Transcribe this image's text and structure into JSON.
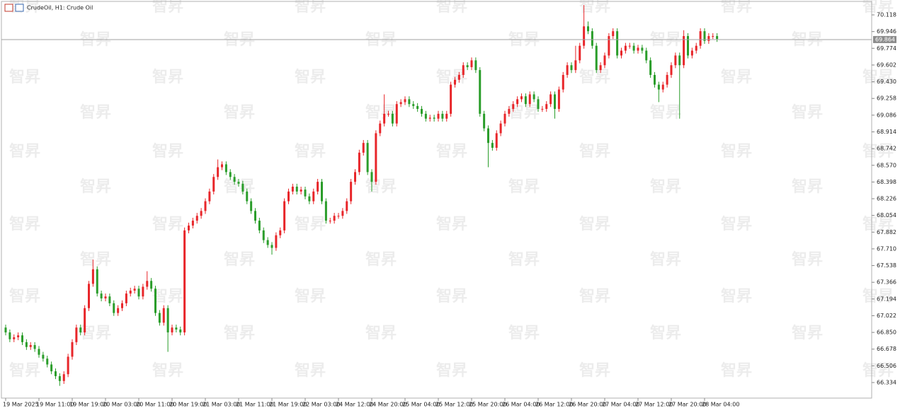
{
  "chart_data": {
    "type": "candlestick",
    "title": "CrudeOil, H1:  Crude Oil",
    "watermark": "智昇",
    "up_color": "#e8262a",
    "down_color": "#2a9d2a",
    "current_price": 69.864,
    "ylim": [
      66.174,
      70.242
    ],
    "yticks": [
      70.118,
      69.946,
      69.774,
      69.602,
      {
        "value": 69.43,
        "label": "69.430"
      },
      69.258,
      69.086,
      68.914,
      68.742,
      {
        "value": 68.57,
        "label": "68.570"
      },
      68.398,
      68.226,
      68.054,
      67.882,
      {
        "value": 67.71,
        "label": "67.710"
      },
      67.538,
      67.366,
      67.194,
      67.022,
      {
        "value": 66.85,
        "label": "66.850"
      },
      66.678,
      66.506,
      66.334
    ],
    "categories": [
      "19 Mar 2025",
      null,
      null,
      null,
      null,
      null,
      null,
      null,
      "19 Mar 11:00",
      null,
      null,
      null,
      null,
      null,
      null,
      null,
      "19 Mar 19:00",
      null,
      null,
      null,
      null,
      null,
      null,
      null,
      "20 Mar 03:00",
      null,
      null,
      null,
      null,
      null,
      null,
      null,
      "20 Mar 11:00",
      null,
      null,
      null,
      null,
      null,
      null,
      null,
      "20 Mar 19:00",
      null,
      null,
      null,
      null,
      null,
      null,
      null,
      "21 Mar 03:00",
      null,
      null,
      null,
      null,
      null,
      null,
      null,
      "21 Mar 11:00",
      null,
      null,
      null,
      null,
      null,
      null,
      null,
      "21 Mar 19:00",
      null,
      null,
      null,
      null,
      null,
      null,
      null,
      "22 Mar 03:00",
      null,
      null,
      null,
      null,
      null,
      null,
      null,
      "24 Mar 12:00",
      null,
      null,
      null,
      null,
      null,
      null,
      null,
      "24 Mar 20:00",
      null,
      null,
      null,
      null,
      null,
      null,
      null,
      "25 Mar 04:00",
      null,
      null,
      null,
      null,
      null,
      null,
      null,
      "25 Mar 12:00",
      null,
      null,
      null,
      null,
      null,
      null,
      null,
      "25 Mar 20:00",
      null,
      null,
      null,
      null,
      null,
      null,
      null,
      "26 Mar 04:00",
      null,
      null,
      null,
      null,
      null,
      null,
      null,
      "26 Mar 12:00",
      null,
      null,
      null,
      null,
      null,
      null,
      null,
      "26 Mar 20:00",
      null,
      null,
      null,
      null,
      null,
      null,
      null,
      "27 Mar 04:00",
      null,
      null,
      null,
      null,
      null,
      null,
      null,
      "27 Mar 12:00",
      null,
      null,
      null,
      null,
      null,
      null,
      null,
      "27 Mar 20:00",
      null,
      null,
      null,
      null,
      null,
      null,
      null,
      "28 Mar 04:00",
      null,
      null,
      null
    ],
    "open": [
      66.9,
      66.85,
      66.78,
      66.8,
      66.82,
      66.75,
      66.7,
      66.72,
      66.68,
      66.62,
      66.58,
      66.52,
      66.45,
      66.4,
      66.35,
      66.42,
      66.6,
      66.75,
      66.9,
      66.85,
      67.1,
      67.35,
      67.5,
      67.25,
      67.2,
      67.22,
      67.15,
      67.05,
      67.1,
      67.15,
      67.25,
      67.28,
      67.3,
      67.22,
      67.32,
      67.38,
      67.3,
      67.05,
      66.95,
      67.1,
      66.85,
      66.9,
      66.88,
      66.85,
      67.9,
      67.95,
      68.0,
      68.05,
      68.1,
      68.2,
      68.3,
      68.45,
      68.55,
      68.58,
      68.5,
      68.45,
      68.4,
      68.38,
      68.3,
      68.2,
      68.1,
      68.0,
      67.9,
      67.8,
      67.75,
      67.72,
      67.85,
      67.9,
      68.2,
      68.3,
      68.35,
      68.3,
      68.32,
      68.25,
      68.2,
      68.3,
      68.4,
      68.2,
      68.0,
      68.0,
      68.05,
      68.05,
      68.1,
      68.2,
      68.4,
      68.5,
      68.7,
      68.8,
      68.5,
      68.4,
      68.9,
      69.0,
      69.1,
      69.1,
      69.0,
      69.2,
      69.22,
      69.25,
      69.2,
      69.18,
      69.15,
      69.1,
      69.05,
      69.06,
      69.05,
      69.1,
      69.05,
      69.1,
      69.4,
      69.45,
      69.5,
      69.6,
      69.58,
      69.65,
      69.55,
      69.1,
      68.95,
      68.8,
      68.75,
      68.9,
      69.0,
      69.1,
      69.15,
      69.2,
      69.25,
      69.28,
      69.2,
      69.3,
      69.25,
      69.15,
      69.15,
      69.2,
      69.3,
      69.15,
      69.35,
      69.5,
      69.6,
      69.55,
      69.65,
      69.8,
      70.0,
      69.95,
      69.8,
      69.55,
      69.6,
      69.7,
      69.9,
      69.95,
      69.7,
      69.75,
      69.8,
      69.8,
      69.75,
      69.78,
      69.75,
      69.65,
      69.5,
      69.4,
      69.35,
      69.4,
      69.5,
      69.6,
      69.7,
      69.6,
      69.9,
      69.7,
      69.75,
      69.8,
      69.95,
      69.85,
      69.9,
      69.9
    ],
    "high": [
      66.93,
      66.88,
      66.83,
      66.85,
      66.85,
      66.78,
      66.75,
      66.75,
      66.71,
      66.65,
      66.61,
      66.55,
      66.48,
      66.43,
      66.45,
      66.63,
      66.78,
      66.93,
      66.93,
      67.13,
      67.38,
      67.6,
      67.53,
      67.28,
      67.25,
      67.25,
      67.18,
      67.13,
      67.18,
      67.28,
      67.31,
      67.33,
      67.33,
      67.35,
      67.48,
      67.41,
      67.33,
      67.08,
      67.13,
      67.13,
      66.93,
      66.93,
      66.91,
      67.93,
      67.98,
      68.03,
      68.08,
      68.13,
      68.23,
      68.33,
      68.48,
      68.63,
      68.61,
      68.61,
      68.53,
      68.48,
      68.43,
      68.41,
      68.33,
      68.23,
      68.13,
      68.03,
      67.93,
      67.83,
      67.78,
      67.88,
      67.93,
      68.23,
      68.33,
      68.38,
      68.38,
      68.35,
      68.35,
      68.28,
      68.33,
      68.43,
      68.43,
      68.23,
      68.03,
      68.08,
      68.08,
      68.13,
      68.23,
      68.43,
      68.53,
      68.73,
      68.83,
      68.83,
      68.53,
      68.93,
      69.03,
      69.3,
      69.13,
      69.13,
      69.23,
      69.25,
      69.28,
      69.28,
      69.23,
      69.21,
      69.18,
      69.13,
      69.09,
      69.09,
      69.13,
      69.13,
      69.13,
      69.43,
      69.48,
      69.53,
      69.63,
      69.63,
      69.68,
      69.68,
      69.58,
      69.13,
      68.98,
      68.83,
      68.93,
      69.03,
      69.13,
      69.18,
      69.23,
      69.28,
      69.31,
      69.31,
      69.33,
      69.33,
      69.28,
      69.18,
      69.23,
      69.33,
      69.33,
      69.38,
      69.53,
      69.63,
      69.63,
      69.8,
      69.83,
      70.22,
      70.05,
      69.98,
      69.83,
      69.63,
      69.73,
      69.93,
      69.98,
      69.98,
      69.78,
      69.83,
      69.83,
      69.83,
      69.81,
      69.81,
      69.78,
      69.68,
      69.53,
      69.43,
      69.43,
      69.53,
      69.63,
      69.73,
      69.73,
      69.96,
      69.93,
      69.78,
      69.83,
      69.98,
      69.98,
      69.93,
      69.93,
      69.93
    ],
    "low": [
      66.82,
      66.75,
      66.75,
      66.77,
      66.72,
      66.67,
      66.67,
      66.65,
      66.59,
      66.55,
      66.49,
      66.42,
      66.37,
      66.3,
      66.32,
      66.39,
      66.57,
      66.72,
      66.82,
      66.82,
      67.07,
      67.32,
      67.22,
      67.17,
      67.17,
      67.12,
      67.02,
      67.02,
      67.07,
      67.12,
      67.22,
      67.25,
      67.19,
      67.19,
      67.29,
      67.27,
      67.02,
      66.92,
      66.92,
      66.65,
      66.82,
      66.85,
      66.82,
      66.82,
      67.87,
      67.92,
      67.97,
      68.02,
      68.07,
      68.17,
      68.27,
      68.42,
      68.52,
      68.47,
      68.42,
      68.37,
      68.35,
      68.27,
      68.17,
      68.07,
      67.97,
      67.87,
      67.77,
      67.72,
      67.65,
      67.69,
      67.82,
      67.87,
      68.17,
      68.27,
      68.27,
      68.27,
      68.22,
      68.17,
      68.17,
      68.27,
      68.17,
      67.97,
      67.97,
      67.97,
      68.02,
      68.02,
      68.07,
      68.17,
      68.37,
      68.47,
      68.67,
      68.47,
      68.3,
      68.37,
      68.87,
      68.97,
      69.07,
      68.97,
      68.97,
      69.17,
      69.19,
      69.17,
      69.15,
      69.12,
      69.07,
      69.02,
      69.02,
      69.02,
      69.02,
      69.02,
      69.02,
      69.07,
      69.37,
      69.42,
      69.47,
      69.55,
      69.55,
      69.52,
      69.07,
      68.92,
      68.55,
      68.72,
      68.72,
      68.87,
      68.97,
      69.07,
      69.12,
      69.17,
      69.22,
      69.17,
      69.17,
      69.22,
      69.12,
      69.12,
      69.12,
      69.17,
      69.05,
      69.12,
      69.32,
      69.47,
      69.52,
      69.52,
      69.62,
      69.77,
      69.92,
      69.77,
      69.52,
      69.52,
      69.57,
      69.67,
      69.87,
      69.67,
      69.67,
      69.72,
      69.77,
      69.72,
      69.72,
      69.72,
      69.62,
      69.47,
      69.37,
      69.22,
      69.32,
      69.37,
      69.47,
      69.57,
      69.05,
      69.57,
      69.67,
      69.67,
      69.72,
      69.77,
      69.82,
      69.82,
      69.87,
      69.84
    ],
    "close": [
      66.85,
      66.78,
      66.8,
      66.82,
      66.75,
      66.7,
      66.72,
      66.68,
      66.62,
      66.58,
      66.52,
      66.45,
      66.4,
      66.35,
      66.42,
      66.6,
      66.75,
      66.9,
      66.85,
      67.1,
      67.35,
      67.5,
      67.25,
      67.2,
      67.22,
      67.15,
      67.05,
      67.1,
      67.15,
      67.25,
      67.28,
      67.3,
      67.22,
      67.32,
      67.38,
      67.3,
      67.05,
      66.95,
      67.1,
      66.85,
      66.9,
      66.88,
      66.85,
      67.9,
      67.95,
      68.0,
      68.05,
      68.1,
      68.2,
      68.3,
      68.45,
      68.55,
      68.58,
      68.5,
      68.45,
      68.4,
      68.38,
      68.3,
      68.2,
      68.1,
      68.0,
      67.9,
      67.8,
      67.75,
      67.72,
      67.85,
      67.9,
      68.2,
      68.3,
      68.35,
      68.3,
      68.32,
      68.25,
      68.2,
      68.3,
      68.4,
      68.2,
      68.0,
      68.0,
      68.05,
      68.05,
      68.1,
      68.2,
      68.4,
      68.5,
      68.7,
      68.8,
      68.5,
      68.4,
      68.9,
      69.0,
      69.1,
      69.1,
      69.0,
      69.2,
      69.22,
      69.25,
      69.2,
      69.18,
      69.15,
      69.1,
      69.05,
      69.06,
      69.05,
      69.1,
      69.05,
      69.1,
      69.4,
      69.45,
      69.5,
      69.6,
      69.58,
      69.65,
      69.55,
      69.1,
      68.95,
      68.8,
      68.75,
      68.9,
      69.0,
      69.1,
      69.15,
      69.2,
      69.25,
      69.28,
      69.2,
      69.3,
      69.25,
      69.15,
      69.15,
      69.2,
      69.3,
      69.15,
      69.35,
      69.5,
      69.6,
      69.55,
      69.65,
      69.8,
      70.0,
      69.95,
      69.8,
      69.55,
      69.6,
      69.7,
      69.9,
      69.95,
      69.7,
      69.75,
      69.8,
      69.8,
      69.75,
      69.78,
      69.75,
      69.65,
      69.5,
      69.4,
      69.35,
      69.4,
      69.5,
      69.6,
      69.7,
      69.6,
      69.9,
      69.7,
      69.75,
      69.8,
      69.95,
      69.85,
      69.9,
      69.9,
      69.87
    ]
  }
}
